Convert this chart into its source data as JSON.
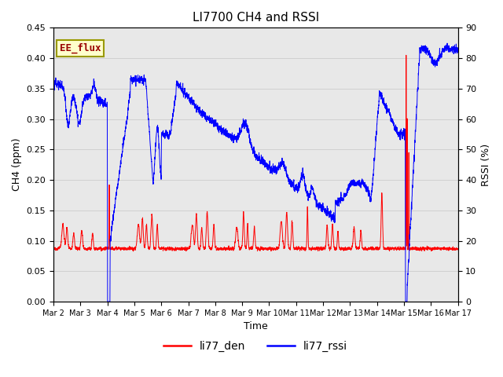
{
  "title": "LI7700 CH4 and RSSI",
  "xlabel": "Time",
  "ylabel_left": "CH4 (ppm)",
  "ylabel_right": "RSSI (%)",
  "annotation": "EE_flux",
  "ylim_left": [
    0.0,
    0.45
  ],
  "ylim_right": [
    0,
    90
  ],
  "yticks_left": [
    0.0,
    0.05,
    0.1,
    0.15,
    0.2,
    0.25,
    0.3,
    0.35,
    0.4,
    0.45
  ],
  "yticks_right": [
    0,
    10,
    20,
    30,
    40,
    50,
    60,
    70,
    80,
    90
  ],
  "xtick_labels": [
    "Mar 2",
    "Mar 3",
    "Mar 4",
    "Mar 5",
    "Mar 6",
    "Mar 7",
    "Mar 8",
    "Mar 9",
    "Mar 10",
    "Mar 11",
    "Mar 12",
    "Mar 13",
    "Mar 14",
    "Mar 15",
    "Mar 16",
    "Mar 17"
  ],
  "color_red": "#FF0000",
  "color_blue": "#0000FF",
  "color_grid": "#cccccc",
  "background_color": "#e8e8e8",
  "legend_labels": [
    "li77_den",
    "li77_rssi"
  ],
  "title_fontsize": 11,
  "label_fontsize": 9,
  "tick_fontsize": 8,
  "annot_fontsize": 9
}
